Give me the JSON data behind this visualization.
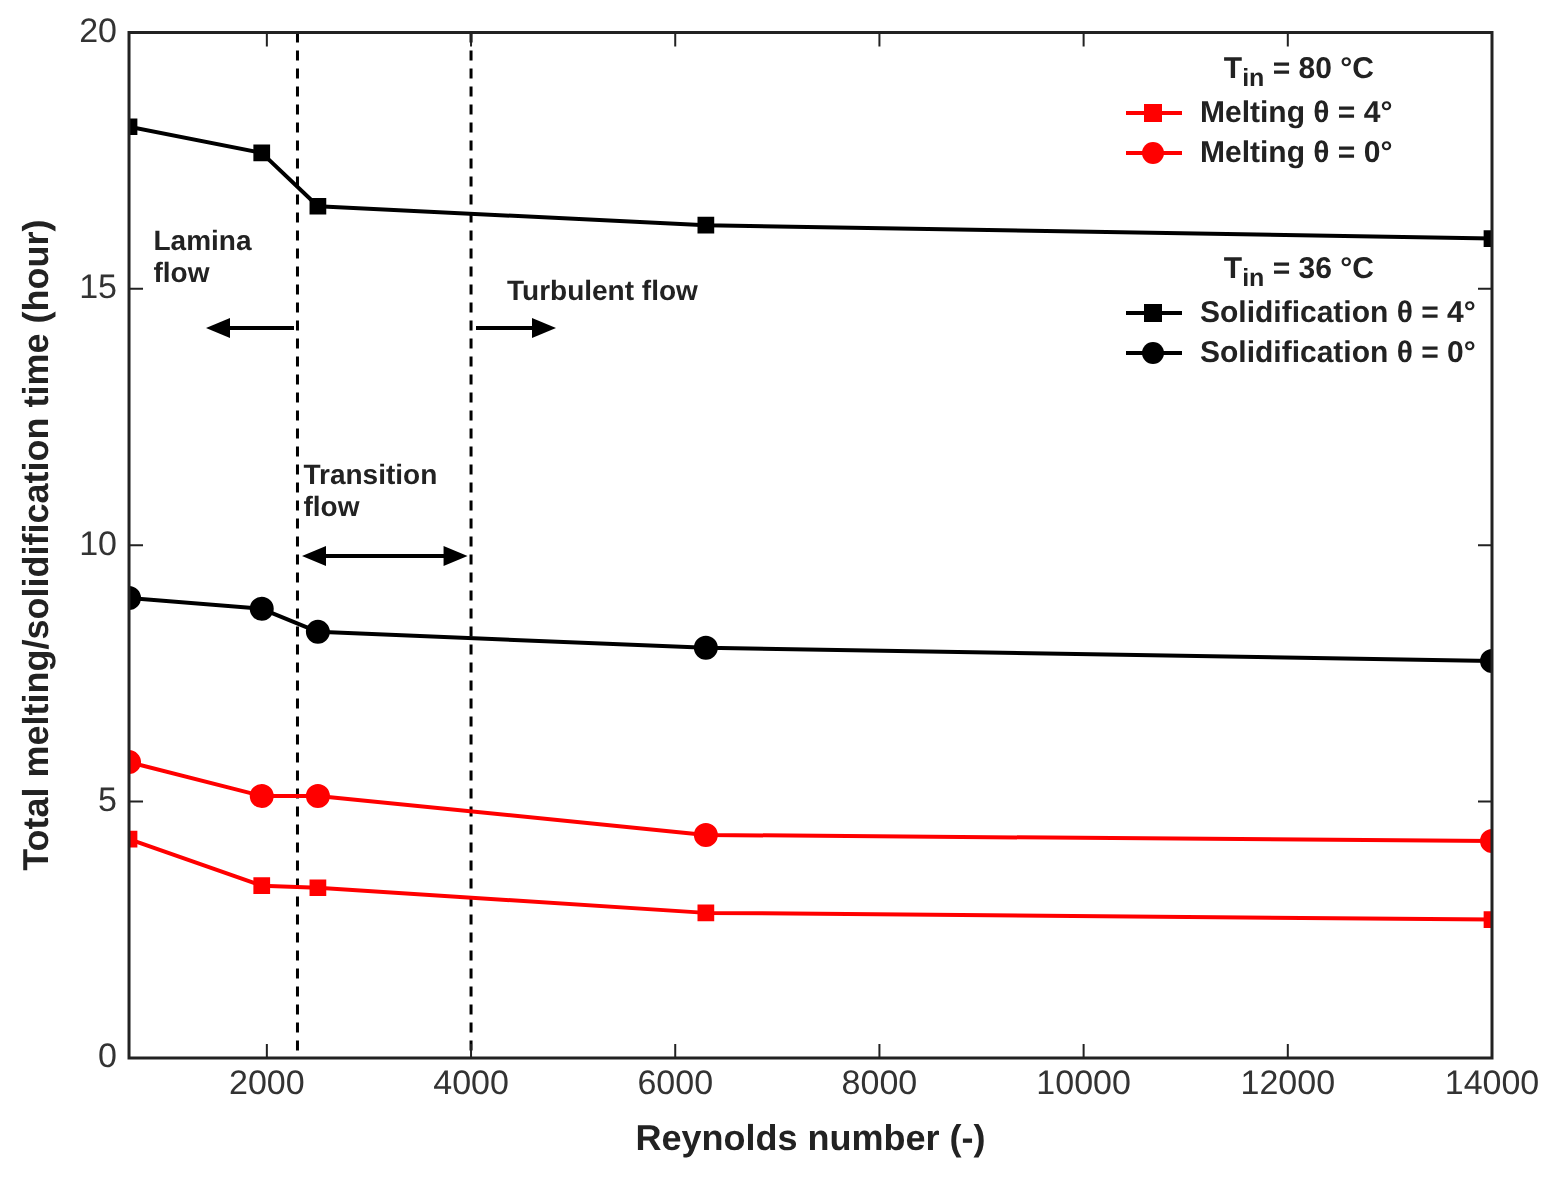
{
  "chart_data": {
    "type": "line",
    "xlabel": "Reynolds number (-)",
    "ylabel": "Total melting/solidification time (hour)",
    "xlim": [
      650,
      14000
    ],
    "xticks": [
      2000,
      4000,
      6000,
      8000,
      10000,
      12000,
      14000
    ],
    "ylim": [
      0,
      20
    ],
    "yticks": [
      0,
      5,
      10,
      15,
      20
    ],
    "grid": false,
    "legend": "top right",
    "line_style": "solid",
    "series": [
      {
        "name": "Melting θ = 4°",
        "color": "#ff0000",
        "marker": "square",
        "x": [
          650,
          1950,
          2500,
          6300,
          14000
        ],
        "values": [
          4.27,
          3.36,
          3.32,
          2.83,
          2.7
        ]
      },
      {
        "name": "Melting θ = 0°",
        "color": "#ff0000",
        "marker": "circle",
        "x": [
          650,
          1950,
          2500,
          6300,
          14000
        ],
        "values": [
          5.77,
          5.11,
          5.11,
          4.35,
          4.23
        ]
      },
      {
        "name": "Solidification θ = 4°",
        "color": "#000000",
        "marker": "square",
        "x": [
          650,
          1950,
          2500,
          6300,
          14000
        ],
        "values": [
          18.16,
          17.65,
          16.61,
          16.24,
          15.98
        ]
      },
      {
        "name": "Solidification θ = 0°",
        "color": "#000000",
        "marker": "circle",
        "x": [
          650,
          1950,
          2500,
          6300,
          14000
        ],
        "values": [
          8.97,
          8.76,
          8.31,
          8.0,
          7.74
        ]
      }
    ],
    "ref_lines": [
      {
        "axis": "x",
        "value": 2300,
        "color": "#000000",
        "line_style": "dashed"
      },
      {
        "axis": "x",
        "value": 4000,
        "color": "#000000",
        "line_style": "dashed"
      }
    ],
    "annotations": [
      "T$_{in}$ = 80 °C",
      "T$_{in}$ = 36 °C",
      "Lamina flow",
      "Transition flow",
      "Turbulent flow"
    ]
  }
}
